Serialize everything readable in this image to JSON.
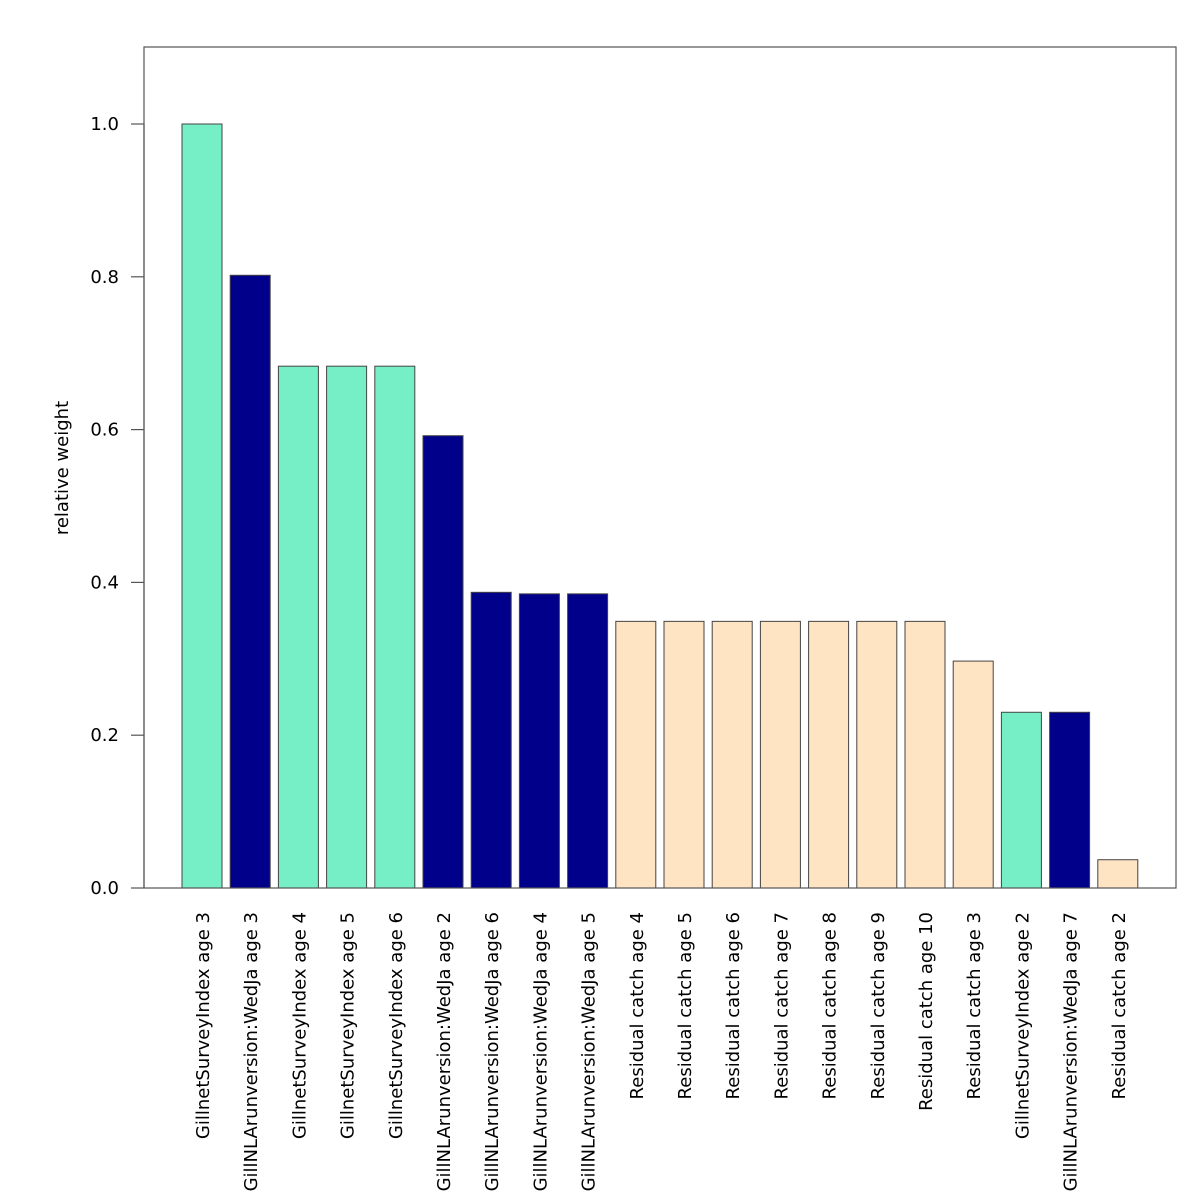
{
  "chart_data": {
    "type": "bar",
    "title": "",
    "xlabel": "",
    "ylabel": "relative weight",
    "ylim": [
      0,
      1.1
    ],
    "yticks": [
      0.0,
      0.2,
      0.4,
      0.6,
      0.8,
      1.0
    ],
    "ytick_labels": [
      "0.0",
      "0.2",
      "0.4",
      "0.6",
      "0.8",
      "1.0"
    ],
    "grid": false,
    "legend": "none",
    "group_colors": {
      "GillnetSurveyIndex": "#76EEC6",
      "GillNLArunversion:WedJa": "#00008B",
      "Residual catch": "#FFE4C4"
    },
    "categories": [
      "GillnetSurveyIndex age 3",
      "GillNLArunversion:WedJa age 3",
      "GillnetSurveyIndex age 4",
      "GillnetSurveyIndex age 5",
      "GillnetSurveyIndex age 6",
      "GillNLArunversion:WedJa age 2",
      "GillNLArunversion:WedJa age 6",
      "GillNLArunversion:WedJa age 4",
      "GillNLArunversion:WedJa age 5",
      "Residual catch age 4",
      "Residual catch age 5",
      "Residual catch age 6",
      "Residual catch age 7",
      "Residual catch age 8",
      "Residual catch age 9",
      "Residual catch age 10",
      "Residual catch age 3",
      "GillnetSurveyIndex age 2",
      "GillNLArunversion:WedJa age 7",
      "Residual catch age 2"
    ],
    "groups": [
      "GillnetSurveyIndex",
      "GillNLArunversion:WedJa",
      "GillnetSurveyIndex",
      "GillnetSurveyIndex",
      "GillnetSurveyIndex",
      "GillNLArunversion:WedJa",
      "GillNLArunversion:WedJa",
      "GillNLArunversion:WedJa",
      "GillNLArunversion:WedJa",
      "Residual catch",
      "Residual catch",
      "Residual catch",
      "Residual catch",
      "Residual catch",
      "Residual catch",
      "Residual catch",
      "Residual catch",
      "GillnetSurveyIndex",
      "GillNLArunversion:WedJa",
      "Residual catch"
    ],
    "values": [
      1.0,
      0.802,
      0.683,
      0.683,
      0.683,
      0.592,
      0.387,
      0.385,
      0.385,
      0.349,
      0.349,
      0.349,
      0.349,
      0.349,
      0.349,
      0.349,
      0.297,
      0.23,
      0.23,
      0.037
    ]
  }
}
